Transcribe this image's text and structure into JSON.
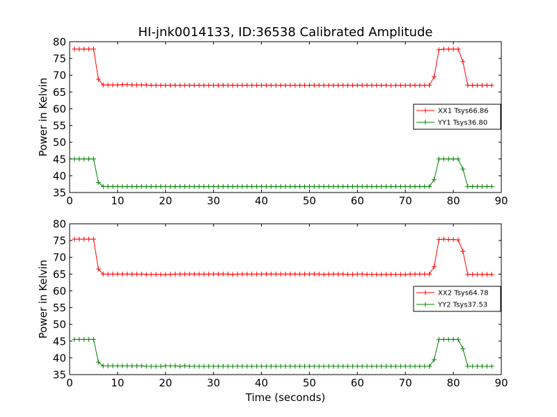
{
  "title": "HI-jnk0014133, ID:36538 Calibrated Amplitude",
  "xlabel": "Time (seconds)",
  "chart_data": [
    {
      "type": "line",
      "title": "HI-jnk0014133, ID:36538 Calibrated Amplitude",
      "xlabel": "",
      "ylabel": "Power in Kelvin",
      "xlim": [
        0,
        90
      ],
      "ylim": [
        35,
        80
      ],
      "xticks": [
        "0",
        "10",
        "20",
        "30",
        "40",
        "50",
        "60",
        "70",
        "80",
        "90"
      ],
      "yticks": [
        "35",
        "40",
        "45",
        "50",
        "55",
        "60",
        "65",
        "70",
        "75",
        "80"
      ],
      "grid": false,
      "legend_position": "center-right",
      "x": [
        1,
        2,
        3,
        4,
        5,
        6,
        7,
        8,
        9,
        10,
        11,
        12,
        13,
        14,
        15,
        16,
        17,
        18,
        19,
        20,
        21,
        22,
        23,
        24,
        25,
        26,
        27,
        28,
        29,
        30,
        31,
        32,
        33,
        34,
        35,
        36,
        37,
        38,
        39,
        40,
        41,
        42,
        43,
        44,
        45,
        46,
        47,
        48,
        49,
        50,
        51,
        52,
        53,
        54,
        55,
        56,
        57,
        58,
        59,
        60,
        61,
        62,
        63,
        64,
        65,
        66,
        67,
        68,
        69,
        70,
        71,
        72,
        73,
        74,
        75,
        76,
        77,
        78,
        79,
        80,
        81,
        82,
        83,
        84,
        85,
        86,
        87,
        88
      ],
      "series": [
        {
          "name": "XX1 Tsys66.86",
          "color": "#ff0000",
          "values": [
            77.8,
            77.8,
            77.8,
            77.8,
            77.8,
            68.8,
            67.1,
            67.1,
            67.1,
            67.1,
            67.2,
            67.2,
            67.1,
            67.1,
            67.1,
            67.1,
            67.0,
            67.0,
            67.0,
            67.0,
            67.0,
            67.0,
            67.0,
            67.0,
            67.0,
            67.0,
            67.0,
            67.0,
            67.0,
            67.0,
            67.0,
            67.0,
            67.0,
            67.0,
            67.0,
            67.0,
            67.0,
            67.0,
            67.0,
            67.0,
            67.0,
            67.0,
            67.0,
            67.0,
            67.0,
            67.0,
            67.0,
            67.0,
            67.0,
            67.0,
            67.0,
            67.0,
            67.0,
            67.0,
            67.0,
            67.0,
            67.0,
            67.0,
            67.0,
            67.0,
            67.0,
            67.0,
            67.0,
            67.0,
            67.0,
            67.0,
            66.9,
            67.0,
            67.0,
            67.0,
            67.0,
            67.0,
            67.0,
            67.0,
            67.0,
            69.5,
            77.6,
            77.8,
            77.8,
            77.8,
            77.8,
            74.0,
            67.0,
            67.0,
            67.0,
            67.0,
            67.0,
            67.0
          ]
        },
        {
          "name": "YY1 Tsys36.80",
          "color": "#008000",
          "values": [
            45.0,
            45.0,
            45.0,
            45.0,
            45.0,
            38.0,
            36.8,
            36.8,
            36.8,
            36.8,
            36.8,
            36.8,
            36.8,
            36.8,
            36.8,
            36.8,
            36.8,
            36.8,
            36.8,
            36.8,
            36.8,
            36.8,
            36.8,
            36.8,
            36.8,
            36.8,
            36.8,
            36.8,
            36.8,
            36.8,
            36.8,
            36.8,
            36.8,
            36.8,
            36.8,
            36.8,
            36.8,
            36.8,
            36.8,
            36.8,
            36.8,
            36.8,
            36.8,
            36.8,
            36.8,
            36.8,
            36.8,
            36.8,
            36.8,
            36.8,
            36.8,
            36.8,
            36.8,
            36.8,
            36.8,
            36.8,
            36.8,
            36.8,
            36.8,
            36.8,
            36.8,
            36.8,
            36.8,
            36.8,
            36.8,
            36.8,
            36.8,
            36.8,
            36.8,
            36.8,
            36.8,
            36.8,
            36.8,
            36.8,
            36.8,
            38.8,
            45.0,
            45.0,
            45.0,
            45.0,
            45.0,
            42.0,
            36.8,
            36.8,
            36.8,
            36.8,
            36.8,
            36.8
          ]
        }
      ]
    },
    {
      "type": "line",
      "title": "",
      "xlabel": "Time (seconds)",
      "ylabel": "Power in Kelvin",
      "xlim": [
        0,
        90
      ],
      "ylim": [
        35,
        80
      ],
      "xticks": [
        "0",
        "10",
        "20",
        "30",
        "40",
        "50",
        "60",
        "70",
        "80",
        "90"
      ],
      "yticks": [
        "35",
        "40",
        "45",
        "50",
        "55",
        "60",
        "65",
        "70",
        "75",
        "80"
      ],
      "grid": false,
      "legend_position": "lower-right",
      "x": [
        1,
        2,
        3,
        4,
        5,
        6,
        7,
        8,
        9,
        10,
        11,
        12,
        13,
        14,
        15,
        16,
        17,
        18,
        19,
        20,
        21,
        22,
        23,
        24,
        25,
        26,
        27,
        28,
        29,
        30,
        31,
        32,
        33,
        34,
        35,
        36,
        37,
        38,
        39,
        40,
        41,
        42,
        43,
        44,
        45,
        46,
        47,
        48,
        49,
        50,
        51,
        52,
        53,
        54,
        55,
        56,
        57,
        58,
        59,
        60,
        61,
        62,
        63,
        64,
        65,
        66,
        67,
        68,
        69,
        70,
        71,
        72,
        73,
        74,
        75,
        76,
        77,
        78,
        79,
        80,
        81,
        82,
        83,
        84,
        85,
        86,
        87,
        88
      ],
      "series": [
        {
          "name": "XX2 Tsys64.78",
          "color": "#ff0000",
          "values": [
            75.4,
            75.4,
            75.4,
            75.4,
            75.4,
            66.5,
            65.0,
            65.0,
            65.0,
            65.0,
            65.0,
            65.0,
            65.0,
            65.0,
            65.0,
            64.9,
            64.9,
            64.9,
            64.9,
            64.9,
            64.9,
            65.0,
            65.0,
            65.0,
            65.0,
            65.0,
            65.0,
            65.0,
            65.0,
            65.0,
            65.0,
            65.0,
            65.0,
            64.9,
            65.0,
            65.0,
            65.0,
            65.0,
            65.0,
            65.0,
            65.0,
            65.0,
            65.0,
            65.0,
            65.0,
            65.0,
            65.0,
            65.0,
            65.0,
            65.0,
            65.0,
            65.0,
            64.9,
            65.0,
            65.0,
            65.0,
            65.0,
            64.9,
            64.9,
            65.0,
            65.0,
            64.9,
            64.9,
            64.9,
            64.9,
            64.9,
            64.9,
            64.9,
            64.9,
            64.9,
            65.0,
            65.0,
            65.0,
            65.0,
            65.0,
            67.2,
            75.3,
            75.4,
            75.3,
            75.3,
            75.2,
            71.8,
            64.9,
            64.9,
            64.9,
            64.9,
            64.9,
            64.9
          ]
        },
        {
          "name": "YY2 Tsys37.53",
          "color": "#008000",
          "values": [
            45.5,
            45.5,
            45.5,
            45.5,
            45.5,
            38.7,
            37.6,
            37.6,
            37.6,
            37.6,
            37.6,
            37.6,
            37.6,
            37.6,
            37.6,
            37.5,
            37.5,
            37.5,
            37.5,
            37.6,
            37.6,
            37.6,
            37.5,
            37.6,
            37.5,
            37.5,
            37.5,
            37.5,
            37.5,
            37.5,
            37.5,
            37.5,
            37.5,
            37.5,
            37.5,
            37.5,
            37.5,
            37.5,
            37.5,
            37.5,
            37.5,
            37.5,
            37.5,
            37.5,
            37.5,
            37.5,
            37.5,
            37.5,
            37.5,
            37.5,
            37.5,
            37.5,
            37.5,
            37.5,
            37.5,
            37.5,
            37.5,
            37.5,
            37.5,
            37.5,
            37.5,
            37.5,
            37.5,
            37.5,
            37.5,
            37.5,
            37.5,
            37.5,
            37.5,
            37.5,
            37.5,
            37.5,
            37.5,
            37.5,
            37.5,
            39.4,
            45.5,
            45.5,
            45.5,
            45.5,
            45.5,
            42.7,
            37.5,
            37.5,
            37.5,
            37.5,
            37.5,
            37.5
          ]
        }
      ]
    }
  ]
}
